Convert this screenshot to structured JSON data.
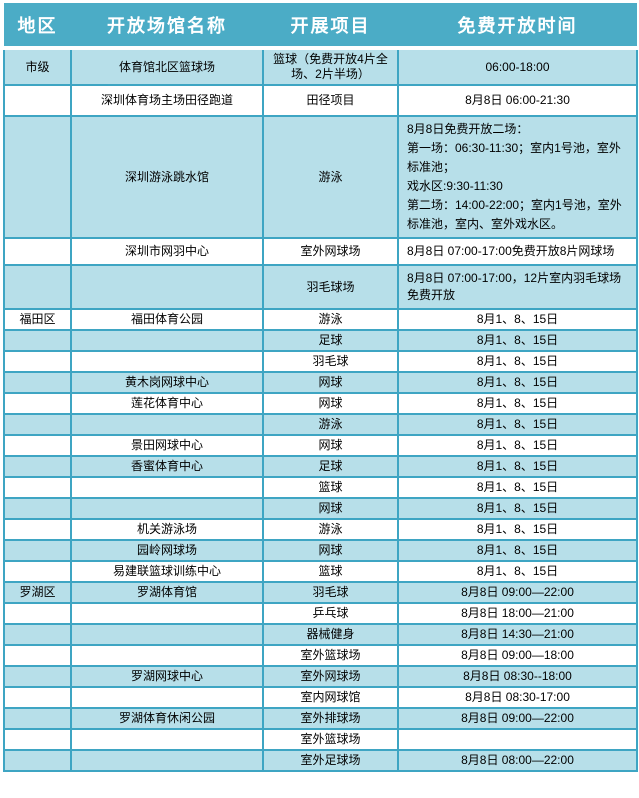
{
  "colors": {
    "header_bg": "#4BACC6",
    "row_stripe_bg": "#B7DFE9",
    "grid_border": "#3EA5C3",
    "header_text": "#FFFFFF",
    "body_text": "#000000"
  },
  "table": {
    "headers": [
      "地区",
      "开放场馆名称",
      "开展项目",
      "免费开放时间"
    ],
    "rows": [
      {
        "region": "市级",
        "venue": "体育馆北区篮球场",
        "project": "篮球（免费开放4片全场、2片半场）",
        "time": "06:00-18:00"
      },
      {
        "region": "",
        "venue": "深圳体育场主场田径跑道",
        "project": "田径项目",
        "time": "8月8日 06:00-21:30"
      },
      {
        "region": "",
        "venue": "深圳游泳跳水馆",
        "project": "游泳",
        "time": "8月8日免费开放二场：\n第一场：06:30-11:30；室内1号池，室外标准池；\n戏水区:9:30-11:30\n第二场：14:00-22:00；室内1号池，室外标准池，室内、室外戏水区。"
      },
      {
        "region": "",
        "venue": "深圳市网羽中心",
        "project": "室外网球场",
        "time": "8月8日 07:00-17:00免费开放8片网球场"
      },
      {
        "region": "",
        "venue": "",
        "project": "羽毛球场",
        "time": "8月8日 07:00-17:00，12片室内羽毛球场免费开放"
      },
      {
        "region": "福田区",
        "venue": "福田体育公园",
        "project": "游泳",
        "time": "8月1、8、15日"
      },
      {
        "region": "",
        "venue": "",
        "project": "足球",
        "time": "8月1、8、15日"
      },
      {
        "region": "",
        "venue": "",
        "project": "羽毛球",
        "time": "8月1、8、15日"
      },
      {
        "region": "",
        "venue": "黄木岗网球中心",
        "project": "网球",
        "time": "8月1、8、15日"
      },
      {
        "region": "",
        "venue": "莲花体育中心",
        "project": "网球",
        "time": "8月1、8、15日"
      },
      {
        "region": "",
        "venue": "",
        "project": "游泳",
        "time": "8月1、8、15日"
      },
      {
        "region": "",
        "venue": "景田网球中心",
        "project": "网球",
        "time": "8月1、8、15日"
      },
      {
        "region": "",
        "venue": "香蜜体育中心",
        "project": "足球",
        "time": "8月1、8、15日"
      },
      {
        "region": "",
        "venue": "",
        "project": "篮球",
        "time": "8月1、8、15日"
      },
      {
        "region": "",
        "venue": "",
        "project": "网球",
        "time": "8月1、8、15日"
      },
      {
        "region": "",
        "venue": "机关游泳场",
        "project": "游泳",
        "time": "8月1、8、15日"
      },
      {
        "region": "",
        "venue": "园岭网球场",
        "project": "网球",
        "time": "8月1、8、15日"
      },
      {
        "region": "",
        "venue": "易建联篮球训练中心",
        "project": "篮球",
        "time": "8月1、8、15日"
      },
      {
        "region": "罗湖区",
        "venue": "罗湖体育馆",
        "project": "羽毛球",
        "time": "8月8日 09:00—22:00"
      },
      {
        "region": "",
        "venue": "",
        "project": "乒乓球",
        "time": "8月8日 18:00—21:00"
      },
      {
        "region": "",
        "venue": "",
        "project": "器械健身",
        "time": "8月8日 14:30—21:00"
      },
      {
        "region": "",
        "venue": "",
        "project": "室外篮球场",
        "time": "8月8日 09:00—18:00"
      },
      {
        "region": "",
        "venue": "罗湖网球中心",
        "project": "室外网球场",
        "time": "8月8日 08:30--18:00"
      },
      {
        "region": "",
        "venue": "",
        "project": "室内网球馆",
        "time": "8月8日 08:30-17:00"
      },
      {
        "region": "",
        "venue": "罗湖体育休闲公园",
        "project": "室外排球场",
        "time": "8月8日 09:00—22:00"
      },
      {
        "region": "",
        "venue": "",
        "project": "室外篮球场",
        "time": ""
      },
      {
        "region": "",
        "venue": "",
        "project": "室外足球场",
        "time": "8月8日 08:00—22:00"
      }
    ]
  }
}
